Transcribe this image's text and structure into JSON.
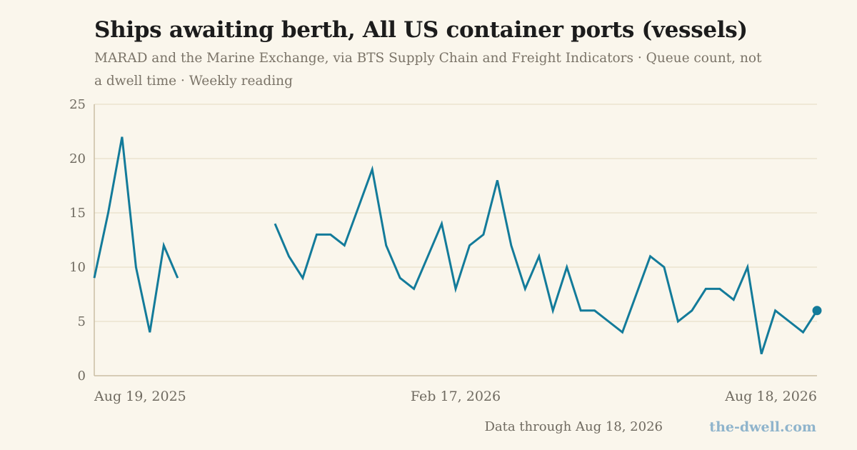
{
  "header": {
    "title": "Ships awaiting berth, All US container ports (vessels)",
    "subtitle": "MARAD and the Marine Exchange, via BTS Supply Chain and Freight Indicators · Queue count, not a dwell time · Weekly reading"
  },
  "footer": {
    "note": "Data through Aug 18, 2026",
    "brand": "the-dwell.com"
  },
  "colors": {
    "line": "#137b9a",
    "grid": "#ebe3cf",
    "axis": "#c9bda3",
    "brand": "#8fb4cc"
  },
  "chart_data": {
    "type": "line",
    "title": "Ships awaiting berth, All US container ports (vessels)",
    "xlabel": "",
    "ylabel": "",
    "ylim": [
      0,
      25
    ],
    "yticks": [
      0,
      5,
      10,
      15,
      20,
      25
    ],
    "grid": true,
    "x_tick_labels": [
      "Aug 19, 2025",
      "Feb 17, 2026",
      "Aug 18, 2026"
    ],
    "x": [
      "2025-08-19",
      "2025-08-26",
      "2025-09-02",
      "2025-09-09",
      "2025-09-16",
      "2025-09-23",
      "2025-09-30",
      "2025-10-07",
      "2025-10-14",
      "2025-10-21",
      "2025-10-28",
      "2025-11-04",
      "2025-11-11",
      "2025-11-18",
      "2025-11-25",
      "2025-12-02",
      "2025-12-09",
      "2025-12-16",
      "2025-12-23",
      "2025-12-30",
      "2026-01-06",
      "2026-01-13",
      "2026-01-20",
      "2026-01-27",
      "2026-02-03",
      "2026-02-10",
      "2026-02-17",
      "2026-02-24",
      "2026-03-03",
      "2026-03-10",
      "2026-03-17",
      "2026-03-24",
      "2026-03-31",
      "2026-04-07",
      "2026-04-14",
      "2026-04-21",
      "2026-04-28",
      "2026-05-05",
      "2026-05-12",
      "2026-05-19",
      "2026-05-26",
      "2026-06-02",
      "2026-06-09",
      "2026-06-16",
      "2026-06-23",
      "2026-06-30",
      "2026-07-07",
      "2026-07-14",
      "2026-07-21",
      "2026-07-28",
      "2026-08-04",
      "2026-08-11",
      "2026-08-18"
    ],
    "values": [
      9,
      15,
      22,
      10,
      4,
      12,
      9,
      null,
      null,
      null,
      null,
      null,
      null,
      14,
      11,
      9,
      13,
      13,
      12,
      15.5,
      19,
      12,
      9,
      8,
      11,
      14,
      8,
      12,
      13,
      18,
      12,
      8,
      11,
      6,
      10,
      6,
      6,
      5,
      4,
      7.5,
      11,
      10,
      5,
      6,
      8,
      8,
      7,
      10,
      2,
      6,
      5,
      4,
      6
    ],
    "series": [
      {
        "values_ref": "values"
      }
    ]
  }
}
